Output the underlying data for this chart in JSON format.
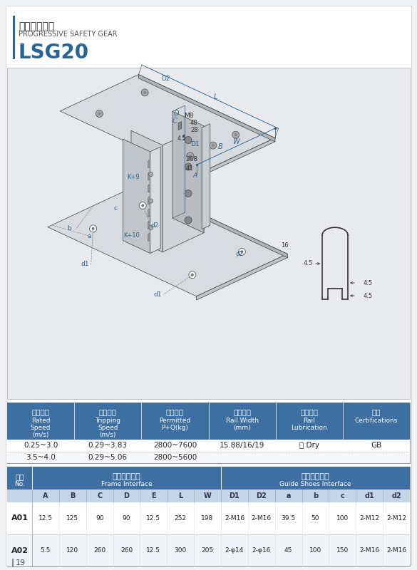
{
  "title_chinese": "渐进式安全钓",
  "title_english": "PROGRESSIVE SAFETY GEAR",
  "model": "LSG20",
  "page_number": "19",
  "spec_table": {
    "headers_cn": [
      "额定速度",
      "触发速度",
      "允许质量",
      "导轨宽度",
      "导轨润滑",
      "认证"
    ],
    "headers_en": [
      "Rated",
      "Tripping",
      "Permitted",
      "Rail Width",
      "Rail",
      "Certifications"
    ],
    "headers_en2": [
      "Speed",
      "Speed",
      "P+Q(kg)",
      "(mm)",
      "Lubrication",
      ""
    ],
    "headers_en3": [
      "(m/s)",
      "(m/s)",
      "",
      "",
      "",
      ""
    ],
    "rows": [
      [
        "0.25~3.0",
        "0.29~3.83",
        "2800~7600",
        "15.88/16/19",
        "干 Dry",
        "GB"
      ],
      [
        "3.5~4.0",
        "0.29~5.06",
        "2800~5600",
        "",
        "",
        ""
      ]
    ]
  },
  "dim_table": {
    "header_cn_1": "底梁安装接口",
    "header_en_1": "Frame Interface",
    "header_cn_2": "导靴安装接口",
    "header_en_2": "Guide Shoes Interface",
    "no_cn": "序号",
    "no_en": "No.",
    "sub_headers": [
      "A",
      "B",
      "C",
      "D",
      "E",
      "L",
      "W",
      "D1",
      "D2",
      "a",
      "b",
      "c",
      "d1",
      "d2"
    ],
    "rows": [
      [
        "A01",
        "12.5",
        "125",
        "90",
        "90",
        "12.5",
        "252",
        "198",
        "2-M16",
        "2-M16",
        "39.5",
        "50",
        "100",
        "2-M12",
        "2-M12"
      ],
      [
        "A02",
        "5.5",
        "120",
        "260",
        "260",
        "12.5",
        "300",
        "205",
        "2-φ14",
        "2-φ16",
        "45",
        "100",
        "150",
        "2-M16",
        "2-M16"
      ]
    ]
  },
  "blue": "#2a6496",
  "table_blue": "#3d6fa3",
  "dim_blue": "#2a6496",
  "light_gray": "#e8eaed",
  "mid_gray": "#c8cdd2",
  "dark_gray": "#888888",
  "edge_col": "#4a4a4a",
  "subheader_bg": "#c8d8e8"
}
